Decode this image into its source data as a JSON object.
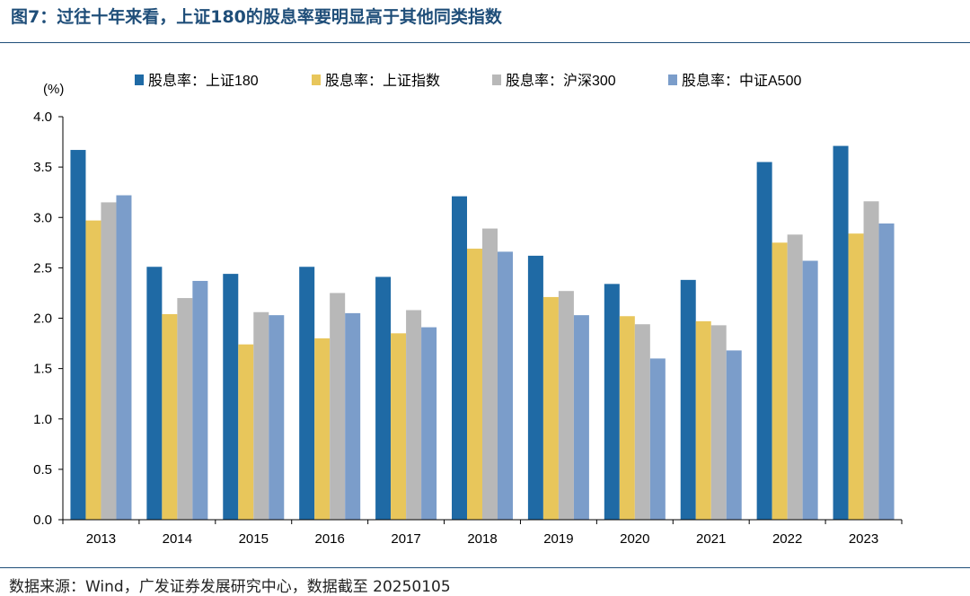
{
  "title": "图7：过往十年来看，上证180的股息率要明显高于其他同类指数",
  "source": "数据来源：Wind，广发证券发展研究中心，数据截至 20250105",
  "chart_data": {
    "type": "bar",
    "unit_label": "(%)",
    "categories": [
      "2013",
      "2014",
      "2015",
      "2016",
      "2017",
      "2018",
      "2019",
      "2020",
      "2021",
      "2022",
      "2023"
    ],
    "series": [
      {
        "name": "股息率：上证180",
        "color": "#1f6aa5",
        "values": [
          3.67,
          2.51,
          2.44,
          2.51,
          2.41,
          3.21,
          2.62,
          2.34,
          2.38,
          3.55,
          3.71
        ]
      },
      {
        "name": "股息率：上证指数",
        "color": "#e8c65b",
        "values": [
          2.97,
          2.04,
          1.74,
          1.8,
          1.85,
          2.69,
          2.21,
          2.02,
          1.97,
          2.75,
          2.84
        ]
      },
      {
        "name": "股息率：沪深300",
        "color": "#b8b8b8",
        "values": [
          3.15,
          2.2,
          2.06,
          2.25,
          2.08,
          2.89,
          2.27,
          1.94,
          1.93,
          2.83,
          3.16
        ]
      },
      {
        "name": "股息率：中证A500",
        "color": "#7b9dca",
        "values": [
          3.22,
          2.37,
          2.03,
          2.05,
          1.91,
          2.66,
          2.03,
          1.6,
          1.68,
          2.57,
          2.94
        ]
      }
    ],
    "yticks": [
      "0.0",
      "0.5",
      "1.0",
      "1.5",
      "2.0",
      "2.5",
      "3.0",
      "3.5",
      "4.0"
    ],
    "ylim": [
      0,
      4.0
    ],
    "legend_position": "top",
    "grid": false
  }
}
